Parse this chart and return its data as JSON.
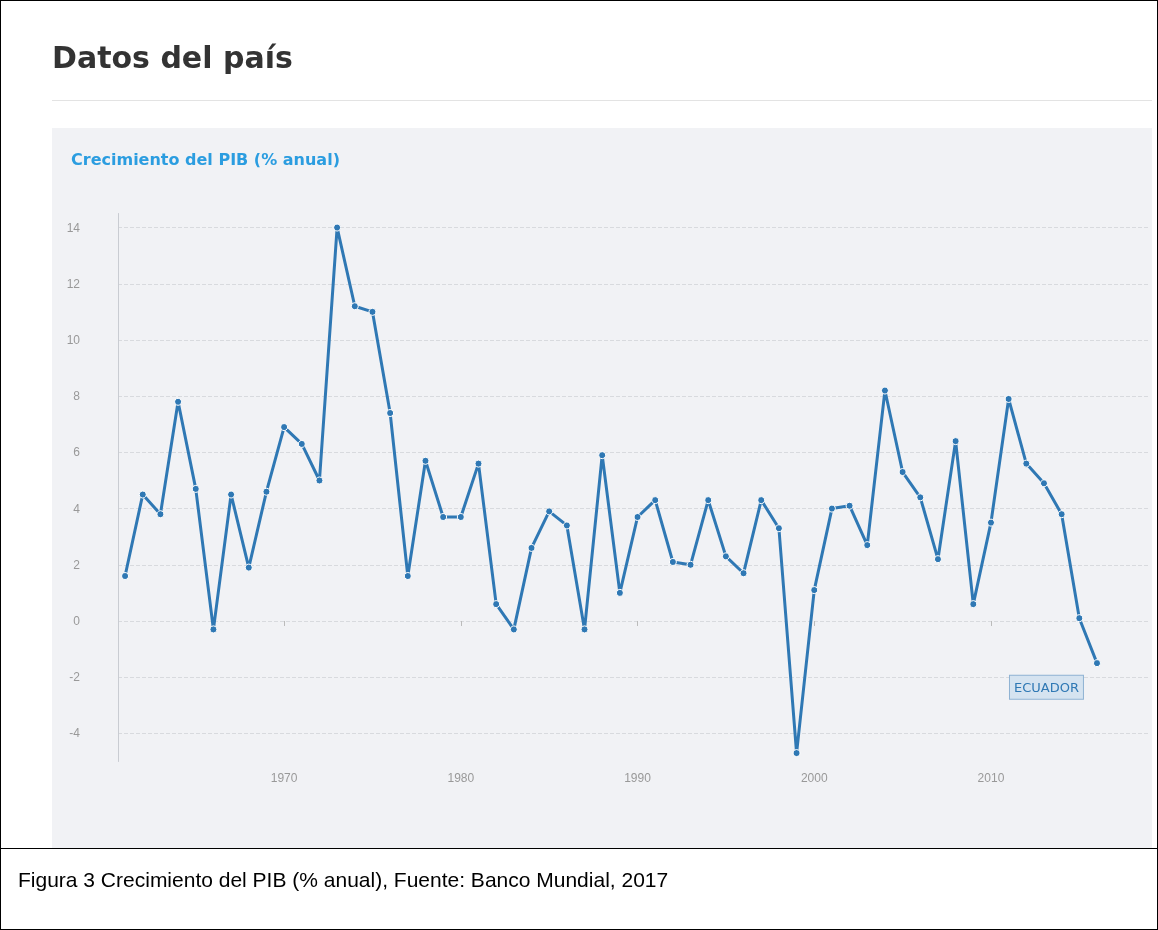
{
  "chart_data": {
    "type": "line",
    "title": "Datos del país",
    "subtitle": "Crecimiento del PIB (% anual)",
    "annotations": [
      "Figura 3 Crecimiento del PIB (% anual), Fuente: Banco Mundial, 2017"
    ],
    "x": [
      1961,
      1962,
      1963,
      1964,
      1965,
      1966,
      1967,
      1968,
      1969,
      1970,
      1971,
      1972,
      1973,
      1974,
      1975,
      1976,
      1977,
      1978,
      1979,
      1980,
      1981,
      1982,
      1983,
      1984,
      1985,
      1986,
      1987,
      1988,
      1989,
      1990,
      1991,
      1992,
      1993,
      1994,
      1995,
      1996,
      1997,
      1998,
      1999,
      2000,
      2001,
      2002,
      2003,
      2004,
      2005,
      2006,
      2007,
      2008,
      2009,
      2010,
      2011,
      2012,
      2013,
      2014,
      2015,
      2016
    ],
    "series": [
      {
        "name": "ECUADOR",
        "color": "#2f78b4",
        "values": [
          1.6,
          4.5,
          3.8,
          7.8,
          4.7,
          -0.3,
          4.5,
          1.9,
          4.6,
          6.9,
          6.3,
          5.0,
          14.0,
          11.2,
          11.0,
          7.4,
          1.6,
          5.7,
          3.7,
          3.7,
          5.6,
          0.6,
          -0.3,
          2.6,
          3.9,
          3.4,
          -0.3,
          5.9,
          1.0,
          3.7,
          4.3,
          2.1,
          2.0,
          4.3,
          2.3,
          1.7,
          4.3,
          3.3,
          -4.7,
          1.1,
          4.0,
          4.1,
          2.7,
          8.2,
          5.3,
          4.4,
          2.2,
          6.4,
          0.6,
          3.5,
          7.9,
          5.6,
          4.9,
          3.8,
          0.1,
          -1.5
        ]
      }
    ],
    "xlim": [
      1960.6,
      2019
    ],
    "xticks": [
      1970,
      1980,
      1990,
      2000,
      2010
    ],
    "ylim": [
      -5,
      14.5
    ],
    "yticks": [
      -4,
      -2,
      0,
      2,
      4,
      6,
      8,
      10,
      12,
      14
    ],
    "grid": "y",
    "legend": false,
    "marker": "circle",
    "line_style": "solid"
  }
}
